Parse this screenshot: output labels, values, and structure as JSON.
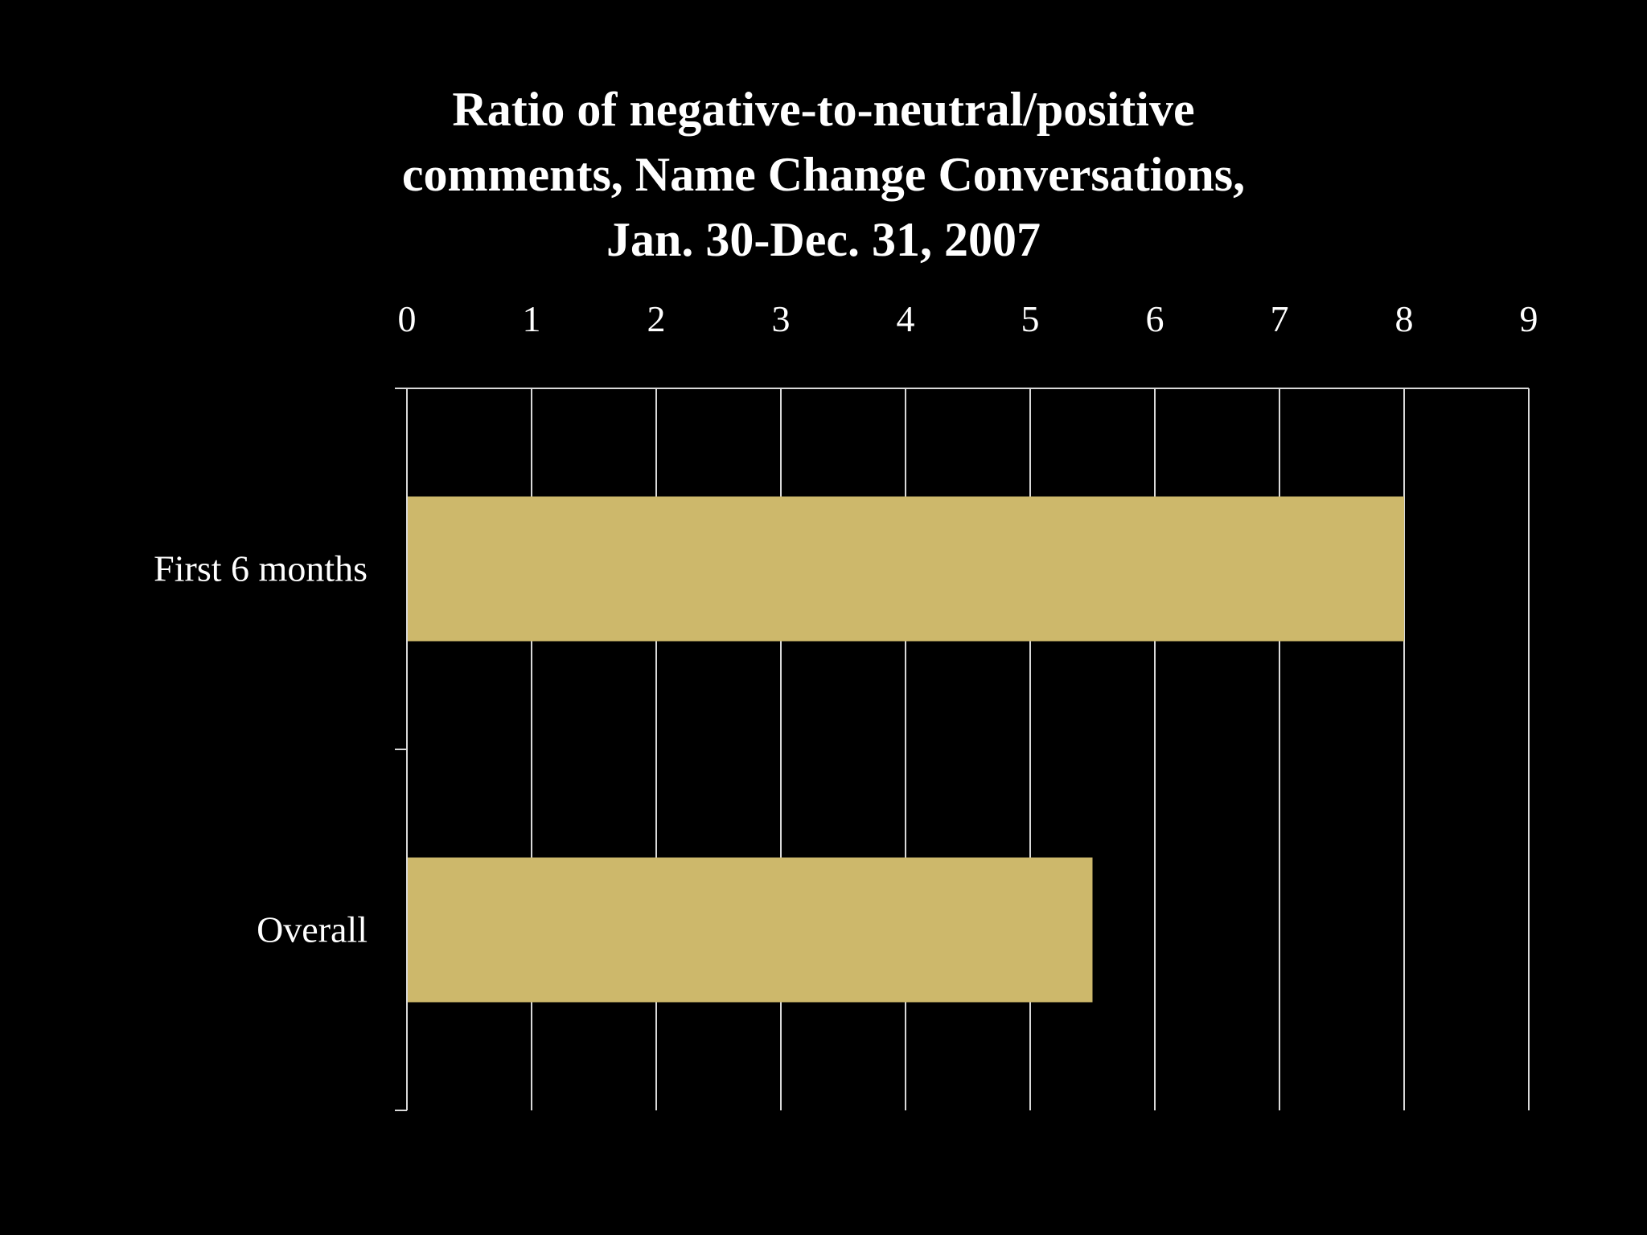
{
  "colors": {
    "background": "#000000",
    "bar": "#cdb86b",
    "grid": "#d9d9d9",
    "text": "#ffffff"
  },
  "chart_data": {
    "type": "bar",
    "orientation": "horizontal",
    "title_lines": [
      "Ratio of negative-to-neutral/positive",
      "comments, Name Change Conversations,",
      "Jan. 30-Dec. 31, 2007"
    ],
    "categories": [
      "First 6 months",
      "Overall"
    ],
    "values": [
      8,
      5.5
    ],
    "xlim": [
      0,
      9
    ],
    "xticks": [
      0,
      1,
      2,
      3,
      4,
      5,
      6,
      7,
      8,
      9
    ],
    "xlabel": "",
    "ylabel": "",
    "x_axis_position": "top",
    "grid": true,
    "legend": "none"
  }
}
